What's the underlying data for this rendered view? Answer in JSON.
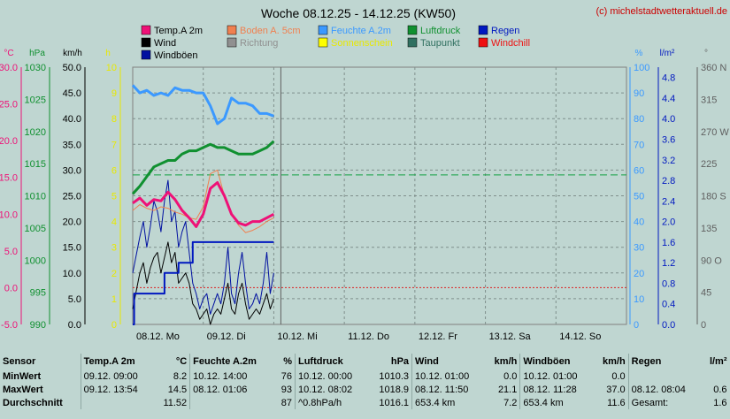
{
  "chart_data": {
    "type": "line",
    "title": "Woche 08.12.25 - 14.12.25 (KW50)",
    "copyright": "(c) michelstadtwetteraktuell.de",
    "x_ticks": [
      "08.12. Mo",
      "09.12. Di",
      "10.12. Mi",
      "11.12. Do",
      "12.12. Fr",
      "13.12. Sa",
      "14.12. So"
    ],
    "axes": [
      {
        "id": "temp",
        "unit": "°C",
        "min": -5,
        "max": 30,
        "ticks": [
          "30.0",
          "25.0",
          "20.0",
          "15.0",
          "10.0",
          "5.0",
          "0.0",
          "-5.0"
        ],
        "color": "#ee1177"
      },
      {
        "id": "press",
        "unit": "hPa",
        "min": 990,
        "max": 1030,
        "ticks": [
          "1030",
          "1025",
          "1020",
          "1015",
          "1010",
          "1005",
          "1000",
          "995",
          "990"
        ],
        "color": "#109030"
      },
      {
        "id": "wind",
        "unit": "km/h",
        "min": 0,
        "max": 50,
        "ticks": [
          "50.0",
          "45.0",
          "40.0",
          "35.0",
          "30.0",
          "25.0",
          "20.0",
          "15.0",
          "10.0",
          "5.0",
          "0.0"
        ],
        "color": "#000000"
      },
      {
        "id": "sun",
        "unit": "h",
        "min": 0,
        "max": 10,
        "ticks": [
          "10",
          "9",
          "8",
          "7",
          "6",
          "5",
          "4",
          "3",
          "2",
          "1",
          "0"
        ],
        "color": "#e8e800"
      },
      {
        "id": "hum",
        "unit": "%",
        "min": 0,
        "max": 100,
        "ticks": [
          "100",
          "90",
          "80",
          "70",
          "60",
          "50",
          "40",
          "30",
          "20",
          "10",
          "0"
        ],
        "color": "#3b99ff"
      },
      {
        "id": "rain",
        "unit": "l/m²",
        "min": 0,
        "max": 5,
        "ticks": [
          "4.8",
          "4.4",
          "4.0",
          "3.6",
          "3.2",
          "2.8",
          "2.4",
          "2.0",
          "1.6",
          "1.2",
          "0.8",
          "0.4",
          "0.0"
        ],
        "color": "#0018c0"
      },
      {
        "id": "dir",
        "unit": "°",
        "min": 0,
        "max": 360,
        "ticks": [
          "360 N",
          "315",
          "270 W",
          "225",
          "180 S",
          "135",
          "90 O",
          "45",
          "0"
        ],
        "color": "#606060"
      }
    ],
    "legend": [
      {
        "name": "Temp.A 2m",
        "color": "#ee1177"
      },
      {
        "name": "Boden A. 5cm",
        "color": "#f08050"
      },
      {
        "name": "Feuchte A.2m",
        "color": "#3b99ff"
      },
      {
        "name": "Luftdruck",
        "color": "#109030"
      },
      {
        "name": "Regen",
        "color": "#0018c0"
      },
      {
        "name": "Wind",
        "color": "#000000"
      },
      {
        "name": "Richtung",
        "color": "#909090"
      },
      {
        "name": "Sonnenschein",
        "color": "#ffff00"
      },
      {
        "name": "Taupunkt",
        "color": "#307060"
      },
      {
        "name": "Windchill",
        "color": "#ee1111"
      },
      {
        "name": "Windböen",
        "color": "#0010a0"
      }
    ],
    "series": [
      {
        "name": "Temp.A 2m",
        "axis": "temp",
        "x": [
          0,
          0.1,
          0.2,
          0.3,
          0.4,
          0.5,
          0.6,
          0.7,
          0.8,
          0.9,
          1.0,
          1.1,
          1.2,
          1.3,
          1.4,
          1.5,
          1.6,
          1.7,
          1.8,
          1.9,
          2.0
        ],
        "values": [
          11.5,
          12.2,
          11.2,
          12.0,
          11.8,
          13.0,
          12.0,
          10.5,
          9.5,
          8.3,
          10.0,
          13.5,
          14.3,
          12.5,
          10.0,
          8.8,
          8.5,
          9.0,
          9.0,
          9.5,
          10.0
        ]
      },
      {
        "name": "Boden A. 5cm",
        "axis": "temp",
        "x": [
          0,
          0.1,
          0.2,
          0.3,
          0.4,
          0.5,
          0.6,
          0.7,
          0.8,
          0.9,
          1.0,
          1.1,
          1.2,
          1.3,
          1.4,
          1.5,
          1.6,
          1.7,
          1.8,
          1.9,
          2.0
        ],
        "values": [
          10.5,
          11.3,
          10.8,
          10.5,
          11.0,
          10.8,
          10.3,
          10.0,
          9.5,
          9.3,
          11.0,
          15.5,
          16.0,
          12.5,
          10.0,
          8.5,
          7.5,
          7.8,
          8.3,
          9.0,
          9.5
        ]
      },
      {
        "name": "Feuchte A.2m",
        "axis": "hum",
        "x": [
          0,
          0.1,
          0.2,
          0.3,
          0.4,
          0.5,
          0.6,
          0.7,
          0.8,
          0.9,
          1.0,
          1.1,
          1.2,
          1.3,
          1.4,
          1.5,
          1.6,
          1.7,
          1.8,
          1.9,
          2.0
        ],
        "values": [
          93,
          90,
          91,
          89,
          90,
          89,
          92,
          91,
          91,
          90,
          90,
          85,
          78,
          80,
          88,
          86,
          86,
          85,
          82,
          82,
          81
        ]
      },
      {
        "name": "Luftdruck",
        "axis": "press",
        "x": [
          0,
          0.1,
          0.2,
          0.3,
          0.4,
          0.5,
          0.6,
          0.7,
          0.8,
          0.9,
          1.0,
          1.1,
          1.2,
          1.3,
          1.4,
          1.5,
          1.6,
          1.7,
          1.8,
          1.9,
          2.0
        ],
        "values": [
          1010.3,
          1011.5,
          1013.0,
          1014.5,
          1015.0,
          1015.5,
          1015.5,
          1016.5,
          1017.0,
          1017.0,
          1017.5,
          1018.0,
          1017.5,
          1017.5,
          1017.0,
          1016.5,
          1016.5,
          1016.5,
          1017.0,
          1017.5,
          1018.5
        ]
      },
      {
        "name": "Regen",
        "axis": "rain",
        "x": [
          0,
          0.02,
          0.1,
          0.3,
          0.32,
          0.45,
          0.55,
          0.65,
          0.75,
          0.85,
          1.0,
          1.5,
          2.0
        ],
        "values": [
          0,
          0.6,
          0.6,
          0.6,
          0.6,
          1.0,
          1.0,
          1.2,
          1.2,
          1.6,
          1.6,
          1.6,
          1.6
        ]
      },
      {
        "name": "Wind",
        "axis": "wind",
        "x": [
          0,
          0.1,
          0.15,
          0.2,
          0.25,
          0.3,
          0.35,
          0.4,
          0.45,
          0.5,
          0.55,
          0.6,
          0.65,
          0.7,
          0.75,
          0.8,
          0.85,
          0.9,
          0.95,
          1.0,
          1.05,
          1.1,
          1.15,
          1.2,
          1.25,
          1.3,
          1.35,
          1.4,
          1.45,
          1.5,
          1.55,
          1.6,
          1.65,
          1.7,
          1.75,
          1.8,
          1.85,
          1.9,
          1.95,
          2.0
        ],
        "values": [
          3,
          10,
          12,
          8,
          11,
          13,
          14,
          10,
          13,
          16,
          12,
          14,
          8,
          9,
          10,
          8,
          4,
          3,
          1,
          2,
          3,
          0,
          2,
          3,
          2,
          5,
          8,
          3,
          2,
          6,
          8,
          4,
          1,
          2,
          3,
          2,
          4,
          6,
          3,
          5
        ]
      },
      {
        "name": "Windböen",
        "axis": "wind",
        "x": [
          0,
          0.1,
          0.15,
          0.2,
          0.25,
          0.3,
          0.35,
          0.4,
          0.45,
          0.5,
          0.55,
          0.6,
          0.65,
          0.7,
          0.75,
          0.8,
          0.85,
          0.9,
          0.95,
          1.0,
          1.05,
          1.1,
          1.15,
          1.2,
          1.25,
          1.3,
          1.35,
          1.4,
          1.45,
          1.5,
          1.55,
          1.6,
          1.65,
          1.7,
          1.75,
          1.8,
          1.85,
          1.9,
          1.95,
          2.0
        ],
        "values": [
          10,
          17,
          20,
          15,
          19,
          24,
          22,
          18,
          24,
          28,
          20,
          22,
          15,
          18,
          20,
          14,
          8,
          6,
          3,
          5,
          6,
          2,
          4,
          6,
          4,
          8,
          15,
          6,
          4,
          10,
          14,
          8,
          3,
          4,
          6,
          4,
          8,
          14,
          6,
          10
        ]
      }
    ]
  },
  "table": {
    "headers": [
      {
        "label": "Sensor",
        "unit": ""
      },
      {
        "label": "Temp.A 2m",
        "unit": "°C"
      },
      {
        "label": "Feuchte A.2m",
        "unit": "%"
      },
      {
        "label": "Luftdruck",
        "unit": "hPa"
      },
      {
        "label": "Wind",
        "unit": "km/h"
      },
      {
        "label": "Windböen",
        "unit": "km/h"
      },
      {
        "label": "Regen",
        "unit": "l/m²"
      }
    ],
    "rows": [
      {
        "label": "MinWert",
        "cells": [
          [
            "09.12.  09:00",
            "8.2"
          ],
          [
            "10.12.  14:00",
            "76"
          ],
          [
            "10.12.  00:00",
            "1010.3"
          ],
          [
            "10.12.  01:00",
            "0.0"
          ],
          [
            "10.12.  01:00",
            "0.0"
          ],
          [
            "",
            ""
          ]
        ]
      },
      {
        "label": "MaxWert",
        "cells": [
          [
            "09.12.  13:54",
            "14.5"
          ],
          [
            "08.12.  01:06",
            "93"
          ],
          [
            "10.12.  08:02",
            "1018.9"
          ],
          [
            "08.12.  11:50",
            "21.1"
          ],
          [
            "08.12.  11:28",
            "37.0"
          ],
          [
            "08.12.  08:04",
            "0.6"
          ]
        ]
      },
      {
        "label": "Durchschnitt",
        "cells": [
          [
            "",
            "11.52"
          ],
          [
            "",
            "87"
          ],
          [
            "^0.8hPa/h",
            "1016.1"
          ],
          [
            "653.4 km",
            "7.2"
          ],
          [
            "653.4 km",
            "11.6"
          ],
          [
            "Gesamt:",
            "1.6"
          ]
        ]
      }
    ]
  }
}
